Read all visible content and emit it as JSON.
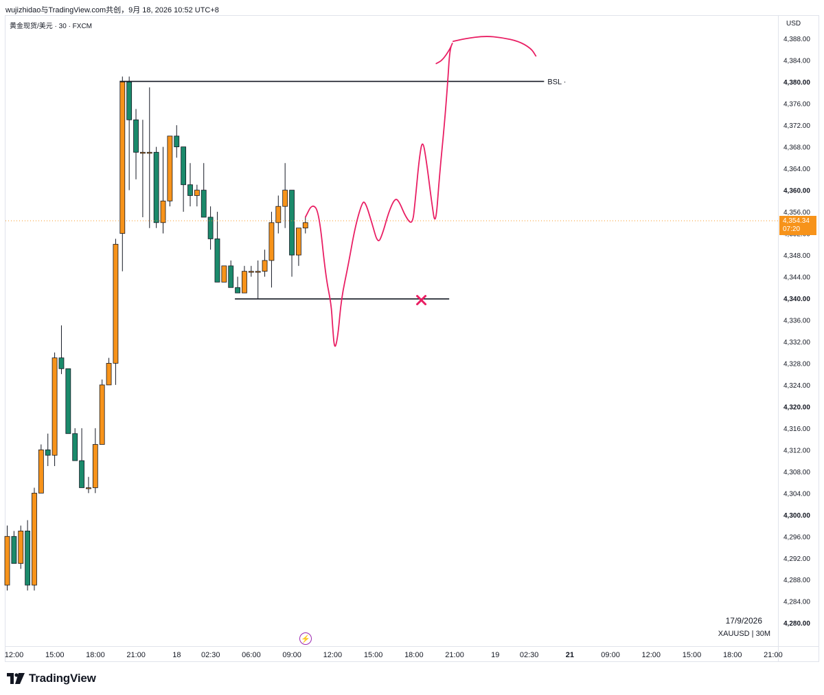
{
  "caption": "wujizhidao与TradingView.com共创，9月 18, 2026 10:52 UTC+8",
  "symbol_title": "黄金现货/美元 · 30 · FXCM",
  "currency": "USD",
  "footer": {
    "date": "17/9/2026",
    "symbol": "XAUUSD | 30M"
  },
  "brand": "TradingView",
  "colors": {
    "up": "#f7931a",
    "down": "#1b8a6b",
    "drawing": "#e91e63",
    "line": "#131722"
  },
  "price_badge": {
    "price": "4,354.34",
    "countdown": "07:20"
  },
  "chart_data": {
    "type": "candlestick",
    "title": "黄金现货/美元 · 30 · FXCM",
    "ylim": [
      4278,
      4392
    ],
    "y_ticks": [
      {
        "v": 4388,
        "label": "4,388.00",
        "bold": false
      },
      {
        "v": 4384,
        "label": "4,384.00",
        "bold": false
      },
      {
        "v": 4380,
        "label": "4,380.00",
        "bold": true
      },
      {
        "v": 4376,
        "label": "4,376.00",
        "bold": false
      },
      {
        "v": 4372,
        "label": "4,372.00",
        "bold": false
      },
      {
        "v": 4368,
        "label": "4,368.00",
        "bold": false
      },
      {
        "v": 4364,
        "label": "4,364.00",
        "bold": false
      },
      {
        "v": 4360,
        "label": "4,360.00",
        "bold": true
      },
      {
        "v": 4356,
        "label": "4,356.00",
        "bold": false
      },
      {
        "v": 4352,
        "label": "4,352.00",
        "bold": false
      },
      {
        "v": 4348,
        "label": "4,348.00",
        "bold": false
      },
      {
        "v": 4344,
        "label": "4,344.00",
        "bold": false
      },
      {
        "v": 4340,
        "label": "4,340.00",
        "bold": true
      },
      {
        "v": 4336,
        "label": "4,336.00",
        "bold": false
      },
      {
        "v": 4332,
        "label": "4,332.00",
        "bold": false
      },
      {
        "v": 4328,
        "label": "4,328.00",
        "bold": false
      },
      {
        "v": 4324,
        "label": "4,324.00",
        "bold": false
      },
      {
        "v": 4320,
        "label": "4,320.00",
        "bold": true
      },
      {
        "v": 4316,
        "label": "4,316.00",
        "bold": false
      },
      {
        "v": 4312,
        "label": "4,312.00",
        "bold": false
      },
      {
        "v": 4308,
        "label": "4,308.00",
        "bold": false
      },
      {
        "v": 4304,
        "label": "4,304.00",
        "bold": false
      },
      {
        "v": 4300,
        "label": "4,300.00",
        "bold": true
      },
      {
        "v": 4296,
        "label": "4,296.00",
        "bold": false
      },
      {
        "v": 4292,
        "label": "4,292.00",
        "bold": false
      },
      {
        "v": 4288,
        "label": "4,288.00",
        "bold": false
      },
      {
        "v": 4284,
        "label": "4,284.00",
        "bold": false
      },
      {
        "v": 4280,
        "label": "4,280.00",
        "bold": true
      }
    ],
    "x_ticks": [
      {
        "i": 0,
        "label": "12:00",
        "bold": false
      },
      {
        "i": 6,
        "label": "15:00",
        "bold": false
      },
      {
        "i": 12,
        "label": "18:00",
        "bold": false
      },
      {
        "i": 18,
        "label": "21:00",
        "bold": false
      },
      {
        "i": 24,
        "label": "18",
        "bold": false
      },
      {
        "i": 29,
        "label": "02:30",
        "bold": false
      },
      {
        "i": 35,
        "label": "06:00",
        "bold": false
      },
      {
        "i": 41,
        "label": "09:00",
        "bold": false
      },
      {
        "i": 47,
        "label": "12:00",
        "bold": false
      },
      {
        "i": 53,
        "label": "15:00",
        "bold": false
      },
      {
        "i": 59,
        "label": "18:00",
        "bold": false
      },
      {
        "i": 65,
        "label": "21:00",
        "bold": false
      },
      {
        "i": 71,
        "label": "19",
        "bold": false
      },
      {
        "i": 76,
        "label": "02:30",
        "bold": false
      },
      {
        "i": 82,
        "label": "21",
        "bold": true
      },
      {
        "i": 88,
        "label": "09:00",
        "bold": false
      },
      {
        "i": 94,
        "label": "12:00",
        "bold": false
      },
      {
        "i": 100,
        "label": "15:00",
        "bold": false
      },
      {
        "i": 106,
        "label": "18:00",
        "bold": false
      },
      {
        "i": 112,
        "label": "21:00",
        "bold": false
      }
    ],
    "candles": [
      {
        "i": 0,
        "o": 4287,
        "h": 4298,
        "l": 4286,
        "c": 4296
      },
      {
        "i": 1,
        "o": 4296,
        "h": 4297,
        "l": 4291,
        "c": 4291
      },
      {
        "i": 2,
        "o": 4291,
        "h": 4298,
        "l": 4290,
        "c": 4297
      },
      {
        "i": 3,
        "o": 4297,
        "h": 4299,
        "l": 4286,
        "c": 4287
      },
      {
        "i": 4,
        "o": 4287,
        "h": 4305,
        "l": 4286,
        "c": 4304
      },
      {
        "i": 5,
        "o": 4304,
        "h": 4313,
        "l": 4304,
        "c": 4312
      },
      {
        "i": 6,
        "o": 4312,
        "h": 4315,
        "l": 4309,
        "c": 4311
      },
      {
        "i": 7,
        "o": 4311,
        "h": 4330,
        "l": 4309,
        "c": 4329
      },
      {
        "i": 8,
        "o": 4329,
        "h": 4335,
        "l": 4326,
        "c": 4327
      },
      {
        "i": 9,
        "o": 4327,
        "h": 4327,
        "l": 4315,
        "c": 4315
      },
      {
        "i": 10,
        "o": 4315,
        "h": 4316,
        "l": 4310,
        "c": 4310
      },
      {
        "i": 11,
        "o": 4310,
        "h": 4316,
        "l": 4305,
        "c": 4305
      },
      {
        "i": 12,
        "o": 4305,
        "h": 4307,
        "l": 4304,
        "c": 4305
      },
      {
        "i": 13,
        "o": 4305,
        "h": 4316,
        "l": 4304,
        "c": 4313
      },
      {
        "i": 14,
        "o": 4313,
        "h": 4325,
        "l": 4313,
        "c": 4324
      },
      {
        "i": 15,
        "o": 4324,
        "h": 4329,
        "l": 4324,
        "c": 4328
      },
      {
        "i": 16,
        "o": 4328,
        "h": 4351,
        "l": 4324,
        "c": 4350
      },
      {
        "i": 17,
        "o": 4352,
        "h": 4381,
        "l": 4345,
        "c": 4380
      },
      {
        "i": 18,
        "o": 4380,
        "h": 4381,
        "l": 4360,
        "c": 4373
      },
      {
        "i": 19,
        "o": 4373,
        "h": 4375,
        "l": 4362,
        "c": 4367
      },
      {
        "i": 20,
        "o": 4367,
        "h": 4373,
        "l": 4355,
        "c": 4367
      },
      {
        "i": 21,
        "o": 4367,
        "h": 4379,
        "l": 4353,
        "c": 4367
      },
      {
        "i": 22,
        "o": 4367,
        "h": 4368,
        "l": 4353,
        "c": 4354
      },
      {
        "i": 23,
        "o": 4354,
        "h": 4368,
        "l": 4352,
        "c": 4358
      },
      {
        "i": 24,
        "o": 4358,
        "h": 4370,
        "l": 4357,
        "c": 4370
      },
      {
        "i": 25,
        "o": 4370,
        "h": 4372,
        "l": 4366,
        "c": 4368
      },
      {
        "i": 26,
        "o": 4368,
        "h": 4368,
        "l": 4356,
        "c": 4361
      },
      {
        "i": 27,
        "o": 4361,
        "h": 4365,
        "l": 4357,
        "c": 4359
      },
      {
        "i": 28,
        "o": 4359,
        "h": 4361,
        "l": 4357,
        "c": 4360
      },
      {
        "i": 29,
        "o": 4360,
        "h": 4365,
        "l": 4355,
        "c": 4355
      },
      {
        "i": 30,
        "o": 4355,
        "h": 4357,
        "l": 4349,
        "c": 4351
      },
      {
        "i": 31,
        "o": 4351,
        "h": 4356,
        "l": 4343,
        "c": 4343
      },
      {
        "i": 32,
        "o": 4343,
        "h": 4346,
        "l": 4343,
        "c": 4346
      },
      {
        "i": 33,
        "o": 4346,
        "h": 4347,
        "l": 4342,
        "c": 4342
      },
      {
        "i": 34,
        "o": 4342,
        "h": 4344,
        "l": 4341,
        "c": 4341
      },
      {
        "i": 35,
        "o": 4341,
        "h": 4346,
        "l": 4341,
        "c": 4345
      },
      {
        "i": 36,
        "o": 4345,
        "h": 4346,
        "l": 4344,
        "c": 4345
      },
      {
        "i": 37,
        "o": 4345,
        "h": 4347,
        "l": 4340,
        "c": 4345
      },
      {
        "i": 38,
        "o": 4345,
        "h": 4349,
        "l": 4344,
        "c": 4347
      },
      {
        "i": 39,
        "o": 4347,
        "h": 4356,
        "l": 4342,
        "c": 4354
      },
      {
        "i": 40,
        "o": 4354,
        "h": 4359,
        "l": 4352,
        "c": 4357
      },
      {
        "i": 41,
        "o": 4357,
        "h": 4365,
        "l": 4353,
        "c": 4360
      },
      {
        "i": 42,
        "o": 4360,
        "h": 4360,
        "l": 4344,
        "c": 4348
      },
      {
        "i": 43,
        "o": 4348,
        "h": 4353,
        "l": 4346,
        "c": 4353
      },
      {
        "i": 44,
        "o": 4353,
        "h": 4355,
        "l": 4352,
        "c": 4354
      }
    ],
    "horizontal_lines": [
      {
        "label": "BSL",
        "price": 4380.1,
        "from_i": 17,
        "to_i": 78
      },
      {
        "label": "",
        "price": 4339.9,
        "from_i": 34,
        "to_i": 64
      }
    ],
    "annotations": [
      {
        "type": "x-mark",
        "price": 4339.8,
        "i": 61
      }
    ],
    "current_price_line": 4354.34
  },
  "drawing": {
    "projection_path": [
      [
        44,
        4355
      ],
      [
        45,
        4357.5
      ],
      [
        46,
        4356
      ],
      [
        47,
        4344
      ],
      [
        47.8,
        4339
      ],
      [
        48,
        4335
      ],
      [
        48.3,
        4330.3
      ],
      [
        48.8,
        4333
      ],
      [
        49.3,
        4340
      ],
      [
        50.3,
        4346
      ],
      [
        51.3,
        4353
      ],
      [
        52.3,
        4357.5
      ],
      [
        52.8,
        4358
      ],
      [
        53.8,
        4354
      ],
      [
        54.7,
        4350
      ],
      [
        55.4,
        4352
      ],
      [
        56.3,
        4356
      ],
      [
        57.2,
        4358.5
      ],
      [
        57.8,
        4358
      ],
      [
        58.8,
        4355
      ],
      [
        59.8,
        4353.5
      ],
      [
        60.2,
        4358
      ],
      [
        60.8,
        4366
      ],
      [
        61.3,
        4369.5
      ],
      [
        61.9,
        4365
      ],
      [
        62.6,
        4358
      ],
      [
        63.2,
        4353
      ],
      [
        63.8,
        4363
      ],
      [
        64.5,
        4372
      ],
      [
        65,
        4380
      ],
      [
        65.3,
        4386
      ],
      [
        65.8,
        4387.5
      ],
      [
        65.3,
        4386
      ],
      [
        64.2,
        4384
      ],
      [
        63.3,
        4383.4
      ]
    ],
    "arc_path": [
      [
        65.8,
        4387.5
      ],
      [
        67.5,
        4388
      ],
      [
        70.5,
        4388.5
      ],
      [
        73,
        4388.2
      ],
      [
        75.5,
        4387.5
      ],
      [
        77.3,
        4386.2
      ],
      [
        78,
        4384.8
      ]
    ]
  }
}
